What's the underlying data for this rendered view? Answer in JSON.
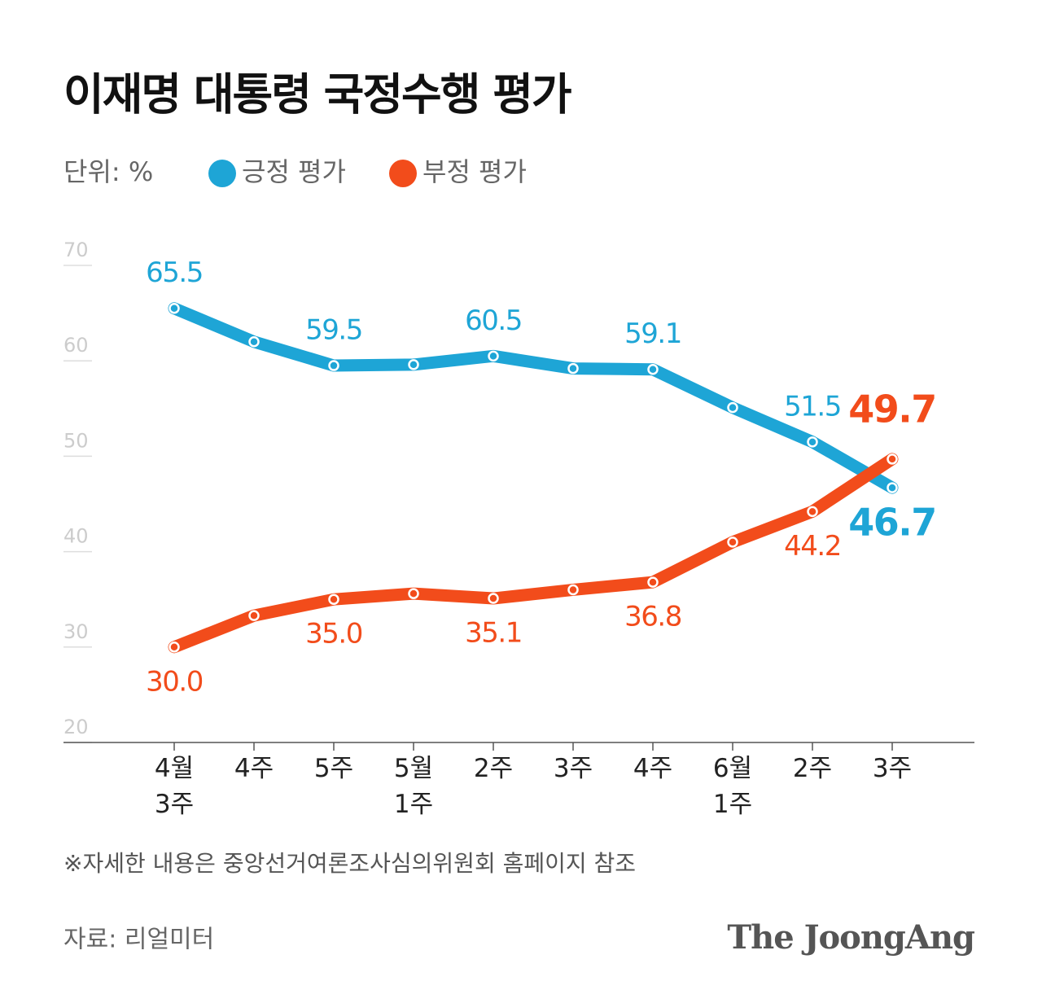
{
  "chart_data": {
    "type": "line",
    "title": "이재명 대통령 국정수행 평가",
    "subtitle": "단위: %",
    "categories": [
      "4월\n3주",
      "4주",
      "5주",
      "5월\n1주",
      "2주",
      "3주",
      "4주",
      "6월\n1주",
      "2주",
      "3주"
    ],
    "series": [
      {
        "name": "긍정 평가",
        "color": "#1ea5d6",
        "values": [
          65.5,
          62.0,
          59.5,
          59.6,
          60.5,
          59.2,
          59.1,
          55.1,
          51.5,
          46.7
        ],
        "value_labels": [
          "65.5",
          null,
          "59.5",
          null,
          "60.5",
          null,
          "59.1",
          null,
          "51.5",
          "46.7"
        ]
      },
      {
        "name": "부정 평가",
        "color": "#f24c1b",
        "values": [
          30.0,
          33.3,
          35.0,
          35.6,
          35.1,
          36.0,
          36.8,
          41.0,
          44.2,
          49.7
        ],
        "value_labels": [
          "30.0",
          null,
          "35.0",
          null,
          "35.1",
          null,
          "36.8",
          null,
          "44.2",
          "49.7"
        ]
      }
    ],
    "ylim": [
      20,
      70
    ],
    "yticks": [
      20,
      30,
      40,
      50,
      60,
      70
    ],
    "grid": true,
    "note": "※자세한 내용은 중앙선거여론조사심의위원회 홈페이지 참조",
    "source": "자료: 리얼미터",
    "brand": "The JoongAng"
  }
}
